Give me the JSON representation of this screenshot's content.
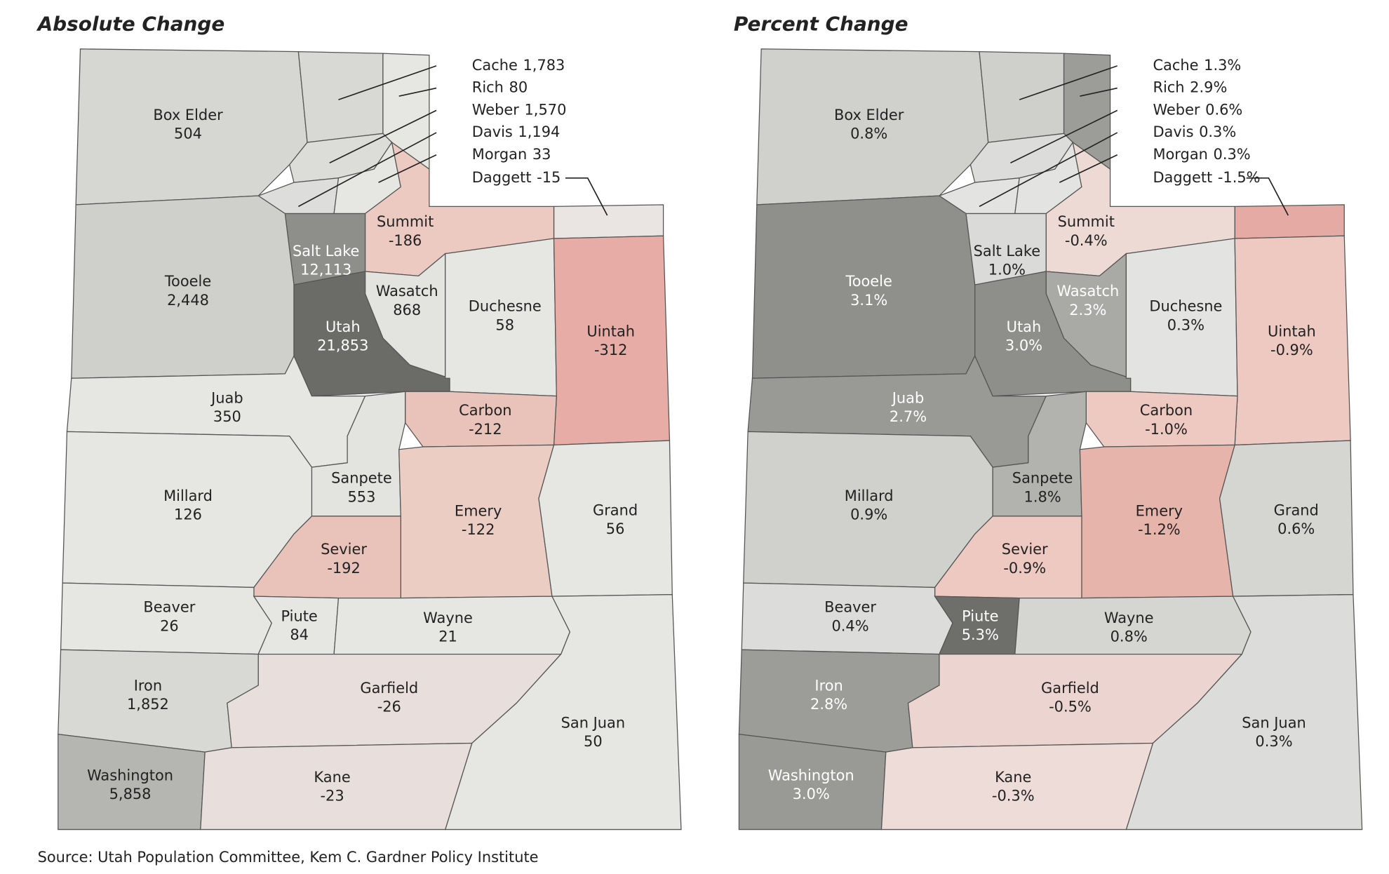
{
  "maps": [
    {
      "title": "Absolute Change",
      "counties": [
        {
          "name": "Box Elder",
          "value": "504",
          "color": "#d6d6d3"
        },
        {
          "name": "Cache",
          "value": "1,783",
          "color": "#d8d8d5"
        },
        {
          "name": "Rich",
          "value": "80",
          "color": "#e6e6e3"
        },
        {
          "name": "Weber",
          "value": "1,570",
          "color": "#dcdcd9"
        },
        {
          "name": "Davis",
          "value": "1,194",
          "color": "#dddddb"
        },
        {
          "name": "Morgan",
          "value": "33",
          "color": "#e6e6e3"
        },
        {
          "name": "Daggett",
          "value": "-15",
          "color": "#eae5e3"
        },
        {
          "name": "Summit",
          "value": "-186",
          "color": "#ecc9c1"
        },
        {
          "name": "Salt Lake",
          "value": "12,113",
          "color": "#8e8e8b"
        },
        {
          "name": "Tooele",
          "value": "2,448",
          "color": "#cfcfcb"
        },
        {
          "name": "Wasatch",
          "value": "868",
          "color": "#e3e3e0"
        },
        {
          "name": "Utah",
          "value": "21,853",
          "color": "#6b6b68"
        },
        {
          "name": "Duchesne",
          "value": "58",
          "color": "#e6e6e3"
        },
        {
          "name": "Uintah",
          "value": "-312",
          "color": "#e6aca5"
        },
        {
          "name": "Juab",
          "value": "350",
          "color": "#e6e6e3"
        },
        {
          "name": "Carbon",
          "value": "-212",
          "color": "#e9c2b9"
        },
        {
          "name": "Sanpete",
          "value": "553",
          "color": "#e3e3e0"
        },
        {
          "name": "Emery",
          "value": "-122",
          "color": "#ebcdc4"
        },
        {
          "name": "Grand",
          "value": "56",
          "color": "#e6e6e3"
        },
        {
          "name": "Millard",
          "value": "126",
          "color": "#e6e6e3"
        },
        {
          "name": "Sevier",
          "value": "-192",
          "color": "#e9c2b9"
        },
        {
          "name": "Beaver",
          "value": "26",
          "color": "#e6e6e3"
        },
        {
          "name": "Piute",
          "value": "84",
          "color": "#e6e6e3"
        },
        {
          "name": "Wayne",
          "value": "21",
          "color": "#e6e6e3"
        },
        {
          "name": "Iron",
          "value": "1,852",
          "color": "#d8d8d5"
        },
        {
          "name": "Garfield",
          "value": "-26",
          "color": "#e8dedb"
        },
        {
          "name": "San Juan",
          "value": "50",
          "color": "#e6e6e3"
        },
        {
          "name": "Washington",
          "value": "5,858",
          "color": "#b5b5b1"
        },
        {
          "name": "Kane",
          "value": "-23",
          "color": "#e8dedb"
        }
      ]
    },
    {
      "title": "Percent Change",
      "counties": [
        {
          "name": "Box Elder",
          "value": "0.8%",
          "color": "#d0d0cd"
        },
        {
          "name": "Cache",
          "value": "1.3%",
          "color": "#cfcfcc"
        },
        {
          "name": "Rich",
          "value": "2.9%",
          "color": "#9c9c99"
        },
        {
          "name": "Weber",
          "value": "0.6%",
          "color": "#dcdcda"
        },
        {
          "name": "Davis",
          "value": "0.3%",
          "color": "#e3e3e1"
        },
        {
          "name": "Morgan",
          "value": "0.3%",
          "color": "#e3e3e1"
        },
        {
          "name": "Daggett",
          "value": "-1.5%",
          "color": "#e6aaa4"
        },
        {
          "name": "Summit",
          "value": "-0.4%",
          "color": "#eedad5"
        },
        {
          "name": "Salt Lake",
          "value": "1.0%",
          "color": "#dadad8"
        },
        {
          "name": "Tooele",
          "value": "3.1%",
          "color": "#8f8f8c"
        },
        {
          "name": "Wasatch",
          "value": "2.3%",
          "color": "#a9a9a6"
        },
        {
          "name": "Utah",
          "value": "3.0%",
          "color": "#8e8e8b"
        },
        {
          "name": "Duchesne",
          "value": "0.3%",
          "color": "#e3e3e1"
        },
        {
          "name": "Uintah",
          "value": "-0.9%",
          "color": "#edc9c1"
        },
        {
          "name": "Juab",
          "value": "2.7%",
          "color": "#999996"
        },
        {
          "name": "Carbon",
          "value": "-1.0%",
          "color": "#edc9c1"
        },
        {
          "name": "Sanpete",
          "value": "1.8%",
          "color": "#b2b2af"
        },
        {
          "name": "Emery",
          "value": "-1.2%",
          "color": "#e6b4aa"
        },
        {
          "name": "Grand",
          "value": "0.6%",
          "color": "#d5d5d2"
        },
        {
          "name": "Millard",
          "value": "0.9%",
          "color": "#d0d0cd"
        },
        {
          "name": "Sevier",
          "value": "-0.9%",
          "color": "#edc9c1"
        },
        {
          "name": "Beaver",
          "value": "0.4%",
          "color": "#dcdcda"
        },
        {
          "name": "Piute",
          "value": "5.3%",
          "color": "#6e6e6b"
        },
        {
          "name": "Wayne",
          "value": "0.8%",
          "color": "#d5d5d2"
        },
        {
          "name": "Iron",
          "value": "2.8%",
          "color": "#9c9c99"
        },
        {
          "name": "Garfield",
          "value": "-0.5%",
          "color": "#ecd5d0"
        },
        {
          "name": "San Juan",
          "value": "0.3%",
          "color": "#dcdcda"
        },
        {
          "name": "Washington",
          "value": "3.0%",
          "color": "#999996"
        },
        {
          "name": "Kane",
          "value": "-0.3%",
          "color": "#eedcd8"
        }
      ]
    }
  ],
  "source": "Source: Utah Population Committee,  Kem C. Gardner Policy Institute"
}
